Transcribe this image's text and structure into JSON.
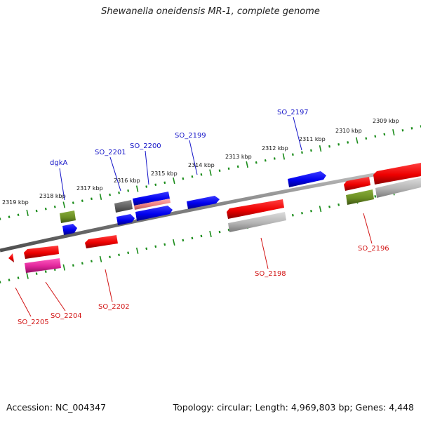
{
  "title": "Shewanella oneidensis MR-1, complete genome",
  "footer": {
    "accession": "Accession: NC_004347",
    "summary": "Topology: circular; Length: 4,969,803 bp; Genes: 4,448"
  },
  "colors": {
    "backbone": "#808080",
    "tick": "#1a8c1a",
    "forward_gene": "#0000ee",
    "reverse_gene": "#ee0000",
    "forward_label": "#1414c8",
    "reverse_label": "#d21414",
    "gray_feature": "#b4b4b4",
    "olive_feature": "#6b8e23",
    "magenta_feature": "#e0249a",
    "pink_feature": "#f08080",
    "darkgray_feature": "#606060"
  },
  "kbp_labels": [
    "2319 kbp",
    "2318 kbp",
    "2317 kbp",
    "2316 kbp",
    "2315 kbp",
    "2314 kbp",
    "2313 kbp",
    "2312 kbp",
    "2311 kbp",
    "2310 kbp",
    "2309 kbp"
  ],
  "forward_labels": [
    "dgkA",
    "SO_2201",
    "SO_2200",
    "SO_2199",
    "SO_2197"
  ],
  "reverse_labels": [
    "SO_2205",
    "SO_2204",
    "SO_2202",
    "SO_2198",
    "SO_2196"
  ]
}
